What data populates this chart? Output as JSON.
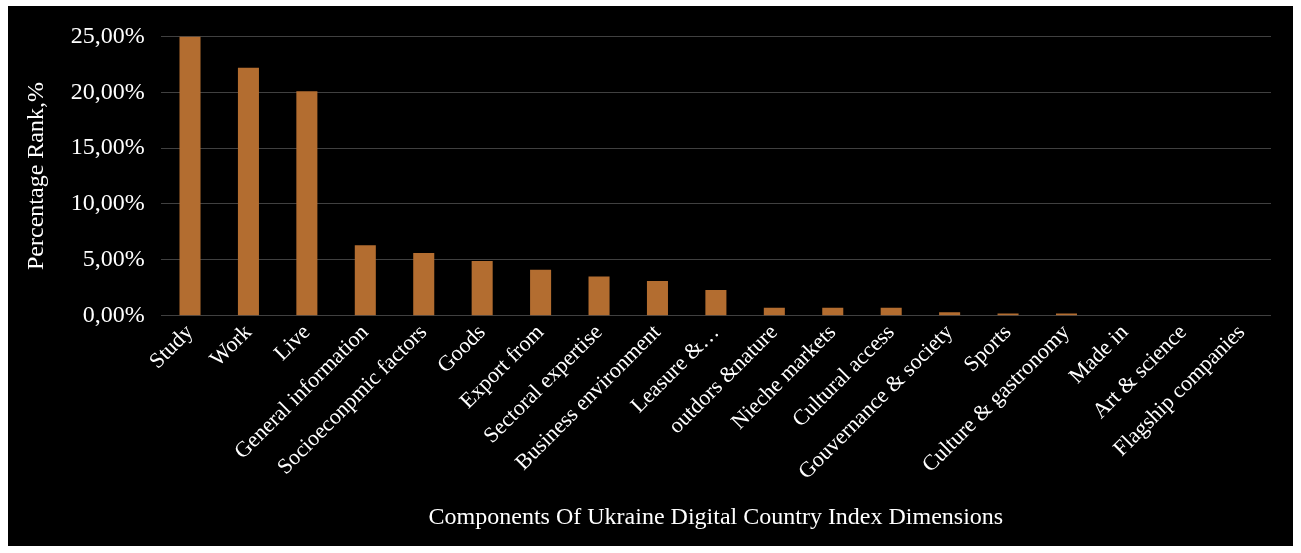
{
  "chart_data": {
    "type": "bar",
    "categories": [
      "Study",
      "Work",
      "Live",
      "General information",
      "Socioeconpmic factors",
      "Goods",
      "Export from",
      "Sectoral expertise",
      "Business environment",
      "Leasure &…",
      "outdors &nature",
      "Nieche markets",
      "Cultural access",
      "Gouvernance & society",
      "Sports",
      "Culture & gastronomy",
      "Made in",
      "Art & science",
      "Flagship companies"
    ],
    "values": [
      25,
      22.2,
      20.1,
      6.3,
      5.6,
      4.9,
      4.1,
      3.5,
      3.1,
      2.3,
      0.7,
      0.7,
      0.7,
      0.3,
      0.2,
      0.2,
      0,
      0,
      0
    ],
    "color": "#b36d30",
    "ylim": [
      0,
      25
    ],
    "yticks": [
      {
        "value": 0,
        "label": "0,00%"
      },
      {
        "value": 5,
        "label": "5,00%"
      },
      {
        "value": 10,
        "label": "10,00%"
      },
      {
        "value": 15,
        "label": "15,00%"
      },
      {
        "value": 20,
        "label": "20,00%"
      },
      {
        "value": 25,
        "label": "25,00%"
      }
    ],
    "ylabel": "Percentage Rank,%",
    "xlabel": "Components Of Ukraine Digital Country Index Dimensions",
    "grid": "y",
    "legend": false
  }
}
